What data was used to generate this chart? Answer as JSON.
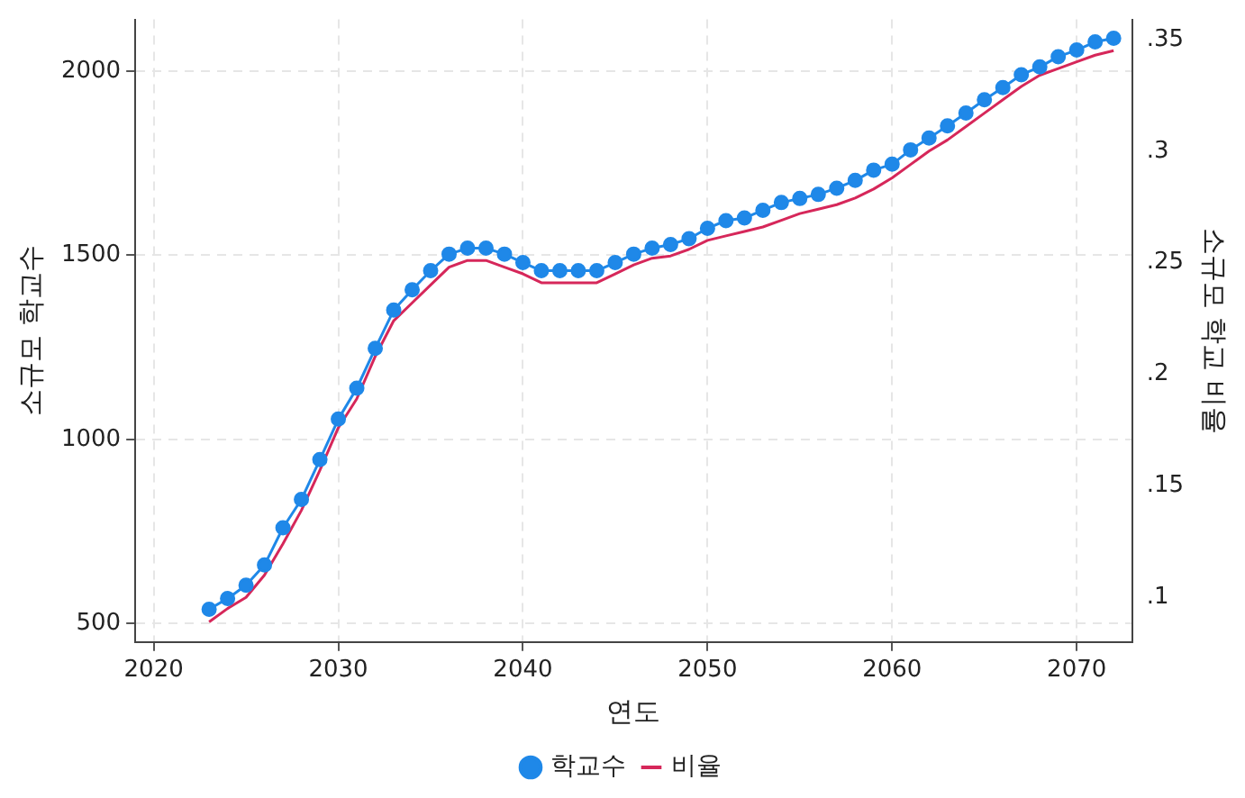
{
  "chart_data": {
    "type": "line",
    "xlabel": "연도",
    "ylabel": "소규모 학교수",
    "y2label": "소규모 학교 비율",
    "x": [
      2023,
      2024,
      2025,
      2026,
      2027,
      2028,
      2029,
      2030,
      2031,
      2032,
      2033,
      2034,
      2035,
      2036,
      2037,
      2038,
      2039,
      2040,
      2041,
      2042,
      2043,
      2044,
      2045,
      2046,
      2047,
      2048,
      2049,
      2050,
      2051,
      2052,
      2053,
      2054,
      2055,
      2056,
      2057,
      2058,
      2059,
      2060,
      2061,
      2062,
      2063,
      2064,
      2065,
      2066,
      2067,
      2068,
      2069,
      2070,
      2071,
      2072
    ],
    "series": [
      {
        "name": "학교수",
        "color": "#1f88e8",
        "marker": "circle",
        "values": [
          539,
          568,
          604,
          659,
          760,
          837,
          945,
          1055,
          1139,
          1247,
          1351,
          1406,
          1458,
          1503,
          1519,
          1519,
          1503,
          1480,
          1458,
          1458,
          1458,
          1458,
          1480,
          1503,
          1519,
          1529,
          1545,
          1573,
          1594,
          1601,
          1622,
          1643,
          1654,
          1665,
          1682,
          1703,
          1731,
          1747,
          1786,
          1818,
          1851,
          1886,
          1922,
          1955,
          1990,
          2011,
          2039,
          2057,
          2079,
          2089
        ]
      },
      {
        "name": "비율",
        "color": "#d6275a",
        "axis": "y2",
        "marker": "none",
        "values": [
          0.089,
          0.095,
          0.1,
          0.11,
          0.124,
          0.139,
          0.157,
          0.176,
          0.189,
          0.208,
          0.224,
          0.232,
          0.24,
          0.248,
          0.251,
          0.251,
          0.248,
          0.245,
          0.241,
          0.241,
          0.241,
          0.241,
          0.245,
          0.249,
          0.252,
          0.253,
          0.256,
          0.26,
          0.262,
          0.264,
          0.266,
          0.269,
          0.272,
          0.274,
          0.276,
          0.279,
          0.283,
          0.288,
          0.294,
          0.3,
          0.305,
          0.311,
          0.317,
          0.323,
          0.329,
          0.334,
          0.337,
          0.34,
          0.343,
          0.345
        ]
      }
    ],
    "xlim": [
      2019,
      2073
    ],
    "xticks": [
      2020,
      2030,
      2040,
      2050,
      2060,
      2070
    ],
    "ylim": [
      450,
      2140
    ],
    "yticks": [
      500,
      1000,
      1500,
      2000
    ],
    "y2lim": [
      0.08,
      0.359
    ],
    "y2ticks": [
      {
        "value": 0.1,
        "label": ".1"
      },
      {
        "value": 0.15,
        "label": ".15"
      },
      {
        "value": 0.2,
        "label": ".2"
      },
      {
        "value": 0.25,
        "label": ".25"
      },
      {
        "value": 0.3,
        "label": ".3"
      },
      {
        "value": 0.35,
        "label": ".35"
      }
    ],
    "grid": true,
    "legend": "bottom",
    "line_style": "solid"
  }
}
